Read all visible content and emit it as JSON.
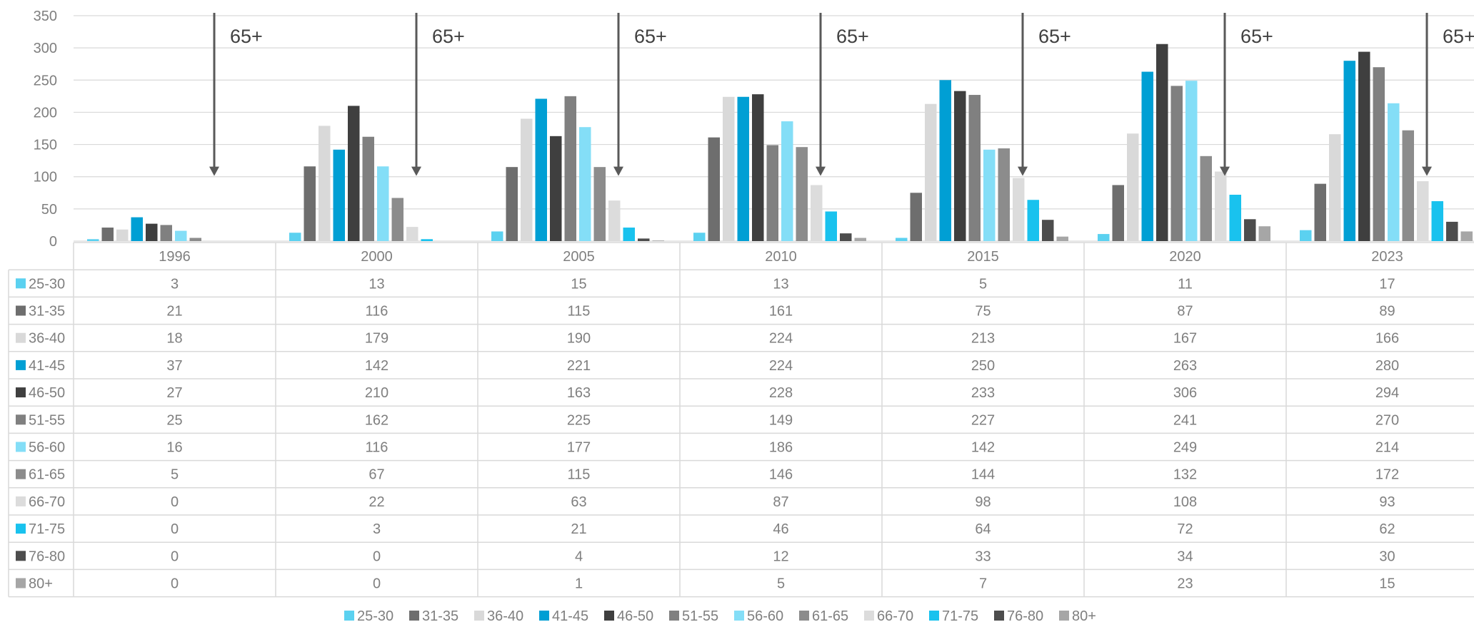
{
  "chart_data": {
    "type": "bar",
    "categories": [
      "1996",
      "2000",
      "2005",
      "2010",
      "2015",
      "2020",
      "2023"
    ],
    "ylim": [
      0,
      350
    ],
    "yticks": [
      0,
      50,
      100,
      150,
      200,
      250,
      300,
      350
    ],
    "grid": true,
    "legend_position": "bottom",
    "data_table": true,
    "series": [
      {
        "name": "25-30",
        "color": "#5bd1f0",
        "values": [
          3,
          13,
          15,
          13,
          5,
          11,
          17
        ]
      },
      {
        "name": "31-35",
        "color": "#6e6e6e",
        "values": [
          21,
          116,
          115,
          161,
          75,
          87,
          89
        ]
      },
      {
        "name": "36-40",
        "color": "#d9d9d9",
        "values": [
          18,
          179,
          190,
          224,
          213,
          167,
          166
        ]
      },
      {
        "name": "41-45",
        "color": "#009fd4",
        "values": [
          37,
          142,
          221,
          224,
          250,
          263,
          280
        ]
      },
      {
        "name": "46-50",
        "color": "#3f3f3f",
        "values": [
          27,
          210,
          163,
          228,
          233,
          306,
          294
        ]
      },
      {
        "name": "51-55",
        "color": "#808080",
        "values": [
          25,
          162,
          225,
          149,
          227,
          241,
          270
        ]
      },
      {
        "name": "56-60",
        "color": "#84def7",
        "values": [
          16,
          116,
          177,
          186,
          142,
          249,
          214
        ]
      },
      {
        "name": "61-65",
        "color": "#8c8c8c",
        "values": [
          5,
          67,
          115,
          146,
          144,
          132,
          172
        ]
      },
      {
        "name": "66-70",
        "color": "#dcdcdc",
        "values": [
          0,
          22,
          63,
          87,
          98,
          108,
          93
        ]
      },
      {
        "name": "71-75",
        "color": "#19c2ee",
        "values": [
          0,
          3,
          21,
          46,
          64,
          72,
          62
        ]
      },
      {
        "name": "76-80",
        "color": "#4d4d4d",
        "values": [
          0,
          0,
          4,
          12,
          33,
          34,
          30
        ]
      },
      {
        "name": "80+",
        "color": "#a6a6a6",
        "values": [
          0,
          0,
          1,
          5,
          7,
          23,
          15
        ]
      }
    ],
    "annotations": [
      {
        "text": "65+",
        "category": "1996",
        "points_to_value": 110
      },
      {
        "text": "65+",
        "category": "2000",
        "points_to_value": 110
      },
      {
        "text": "65+",
        "category": "2005",
        "points_to_value": 110
      },
      {
        "text": "65+",
        "category": "2010",
        "points_to_value": 110
      },
      {
        "text": "65+",
        "category": "2015",
        "points_to_value": 110
      },
      {
        "text": "65+",
        "category": "2020",
        "points_to_value": 110
      },
      {
        "text": "65+",
        "category": "2023",
        "points_to_value": 110
      }
    ]
  }
}
